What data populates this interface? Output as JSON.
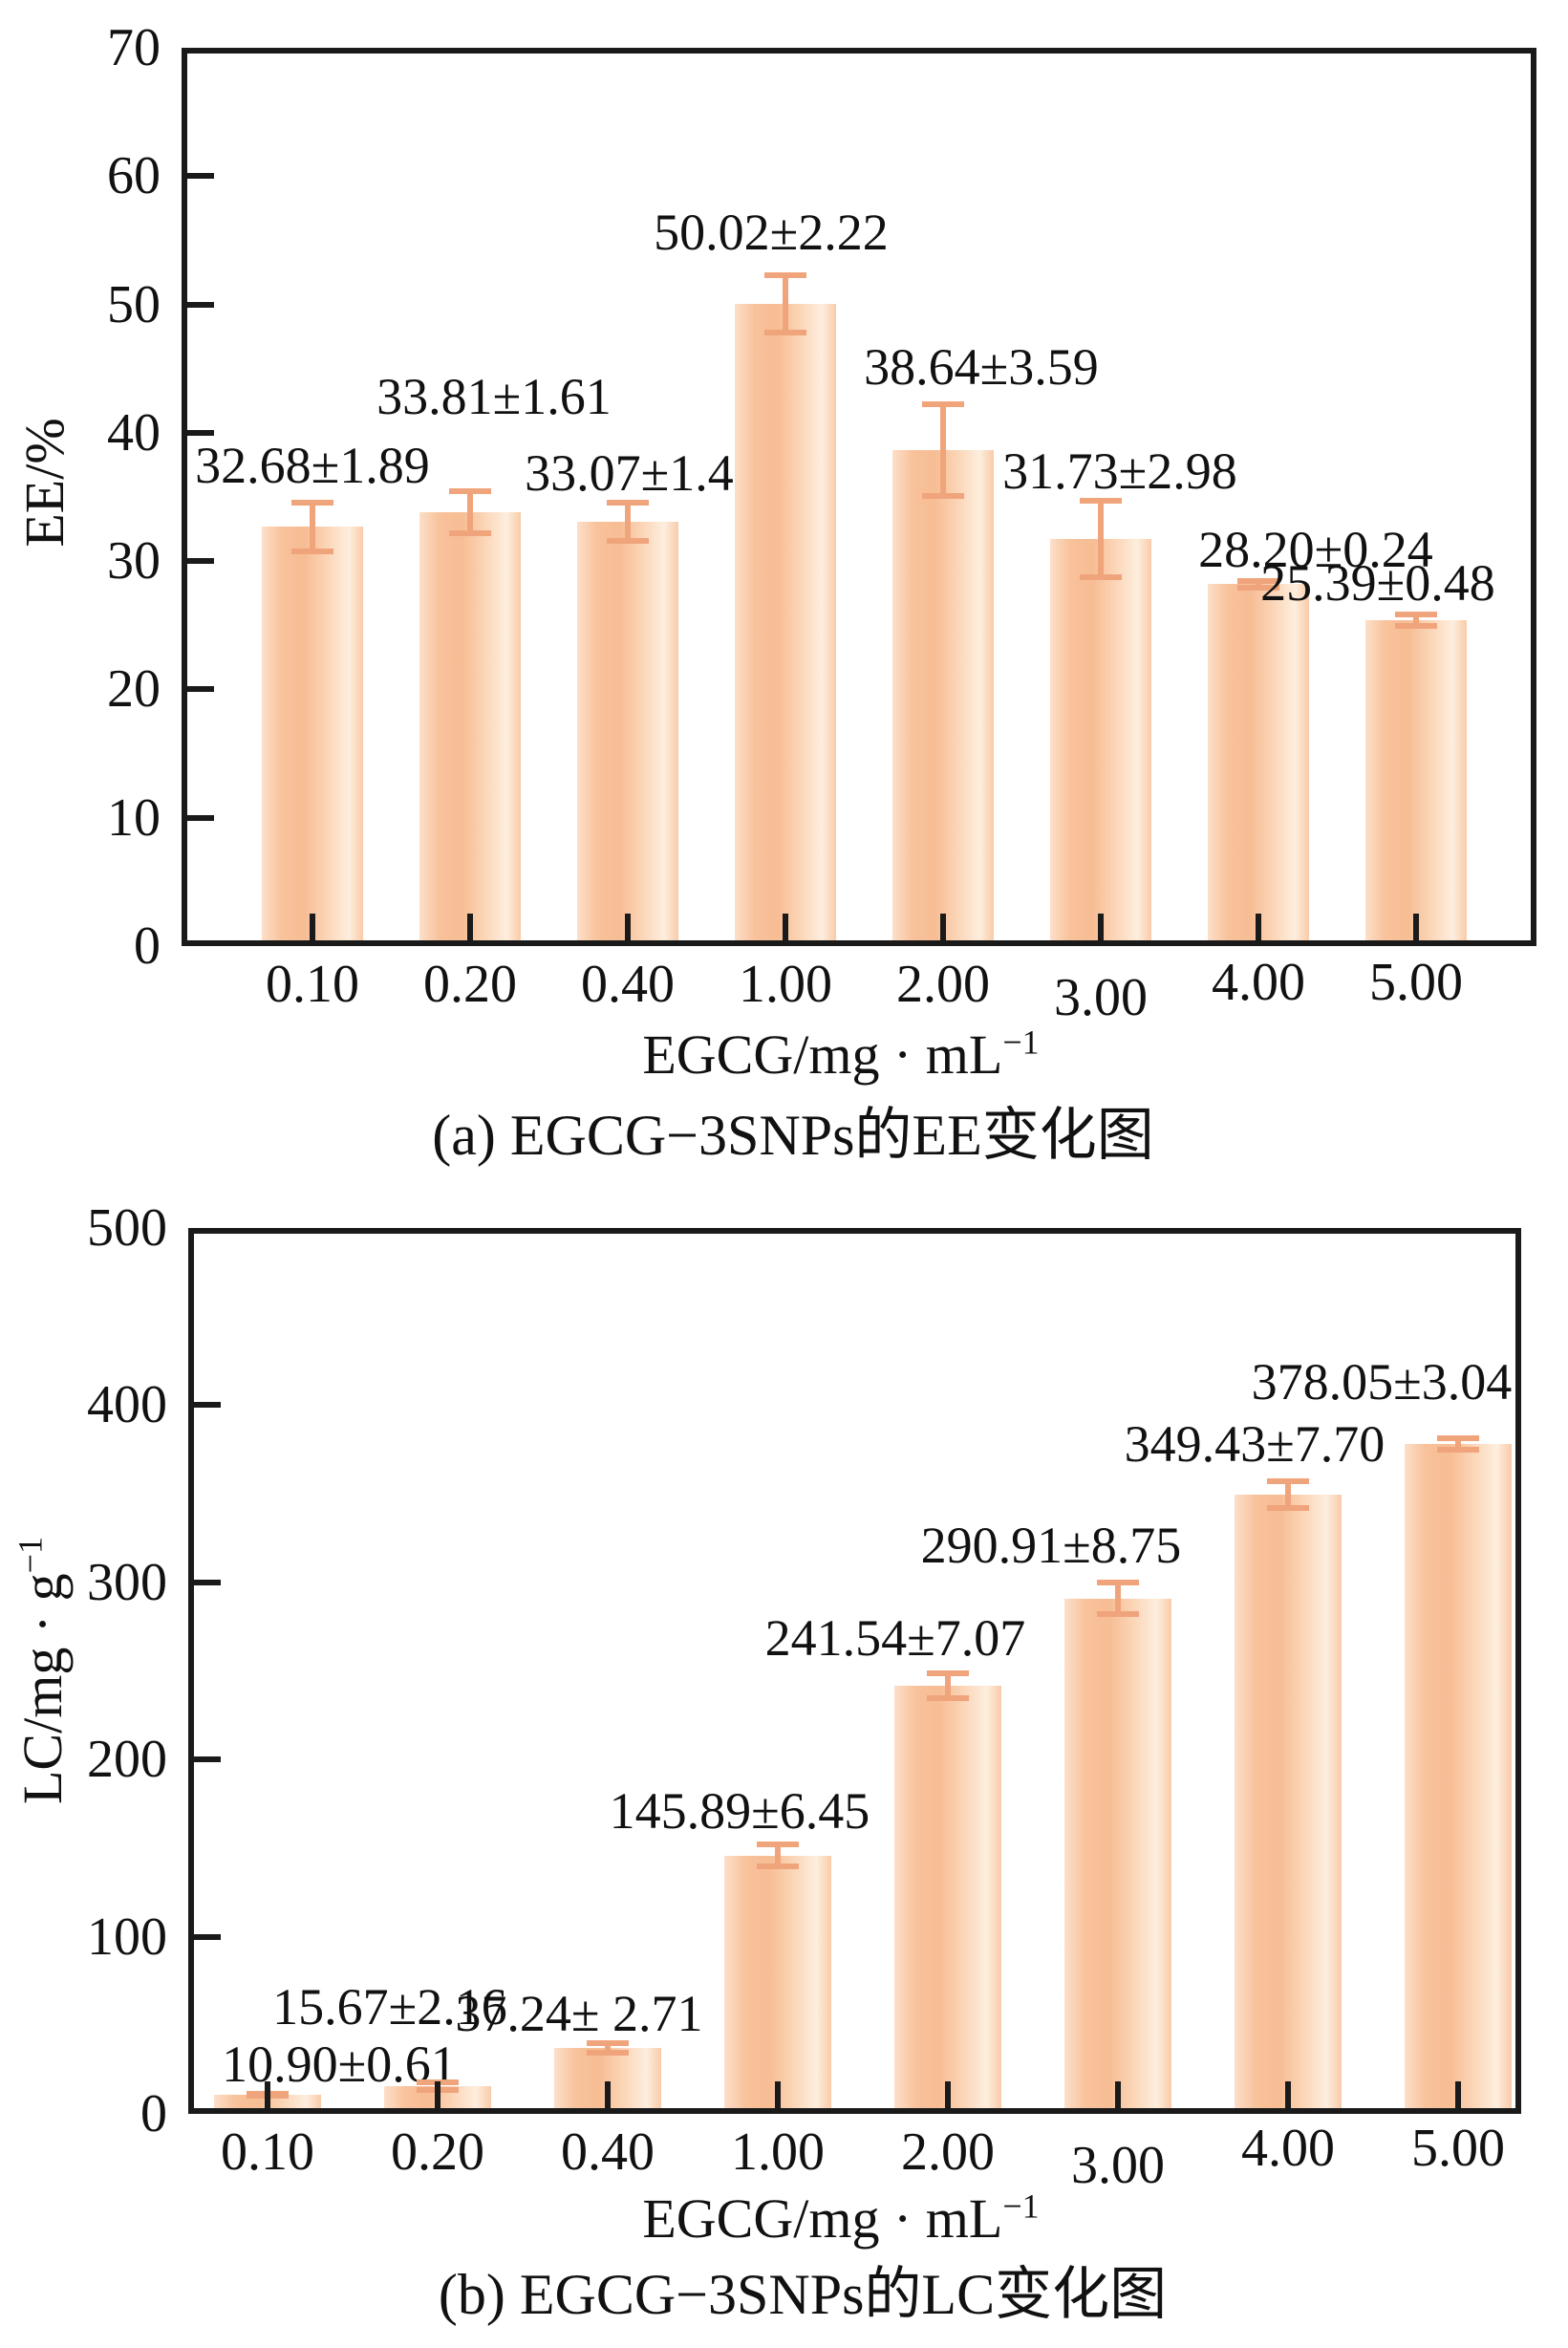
{
  "colors": {
    "bar_edge": "#f8c29b",
    "bar_center": "#fdeede",
    "error_bar": "#f0a47c",
    "axis": "#1a1a1a",
    "text": "#111111"
  },
  "chart_data": [
    {
      "type": "bar",
      "panel": "a",
      "caption": "(a) EGCG−3SNPs的EE变化图",
      "xlabel": "EGCG/mg · mL⁻¹",
      "xlabel_main": "EGCG/mg · mL",
      "xlabel_sup": "−1",
      "ylabel": "EE/%",
      "ylabel_main": "EE/%",
      "ylabel_sup": "",
      "categories": [
        "0.10",
        "0.20",
        "0.40",
        "1.00",
        "2.00",
        "3.00",
        "4.00",
        "5.00"
      ],
      "values": [
        32.68,
        33.81,
        33.07,
        50.02,
        38.64,
        31.73,
        28.2,
        25.39
      ],
      "errors": [
        1.89,
        1.61,
        1.48,
        2.22,
        3.59,
        2.98,
        0.24,
        0.48
      ],
      "bar_labels": [
        "32.68±1.89",
        "33.81±1.61",
        "33.07±1.48",
        "50.02±2.22",
        "38.64±3.59",
        "31.73±2.98",
        "28.20±0.24",
        "25.39±0.48"
      ],
      "yticks": [
        0,
        10,
        20,
        30,
        40,
        50,
        60,
        70
      ],
      "ylim": [
        0,
        70
      ],
      "grid": false,
      "legend": null
    },
    {
      "type": "bar",
      "panel": "b",
      "caption": "(b) EGCG−3SNPs的LC变化图",
      "xlabel": "EGCG/mg · mL⁻¹",
      "xlabel_main": "EGCG/mg · mL",
      "xlabel_sup": "−1",
      "ylabel": "LC/mg · g⁻¹",
      "ylabel_main": "LC/mg · g",
      "ylabel_sup": "−1",
      "categories": [
        "0.10",
        "0.20",
        "0.40",
        "1.00",
        "2.00",
        "3.00",
        "4.00",
        "5.00"
      ],
      "values": [
        10.9,
        15.67,
        37.24,
        145.89,
        241.54,
        290.91,
        349.43,
        378.05
      ],
      "errors": [
        0.61,
        2.16,
        2.71,
        6.45,
        7.07,
        8.75,
        7.7,
        3.04
      ],
      "bar_labels": [
        "10.90±0.61",
        "15.67±2.16",
        "37.24± 2.71",
        "145.89±6.45",
        "241.54±7.07",
        "290.91±8.75",
        "349.43±7.70",
        "378.05±3.04"
      ],
      "yticks": [
        0,
        100,
        200,
        300,
        400,
        500
      ],
      "ylim": [
        0,
        500
      ],
      "grid": false,
      "legend": null
    }
  ]
}
